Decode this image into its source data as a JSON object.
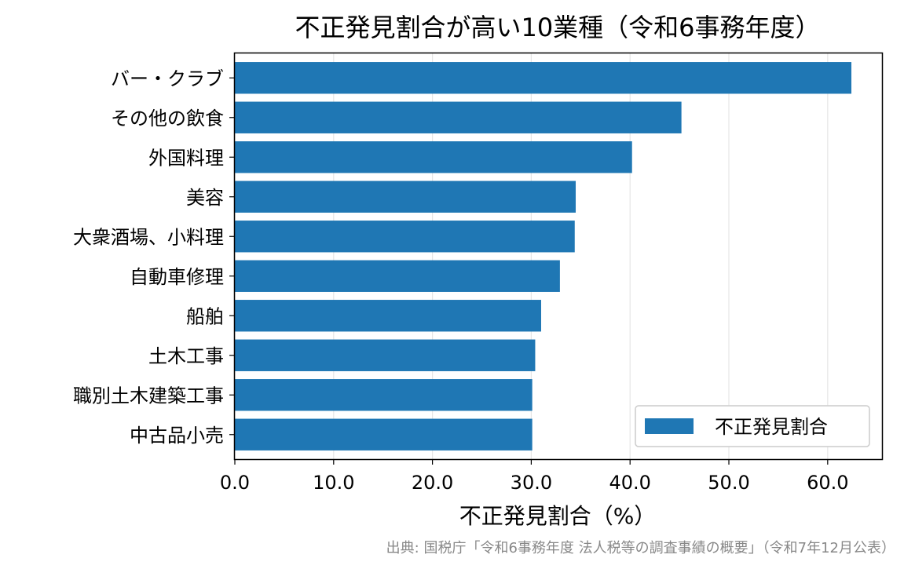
{
  "chart_data": {
    "type": "bar",
    "orientation": "horizontal",
    "title": "不正発見割合が高い10業種（令和6事務年度）",
    "xlabel": "不正発見割合（%）",
    "ylabel": "",
    "categories": [
      "バー・クラブ",
      "その他の飲食",
      "外国料理",
      "美容",
      "大衆酒場、小料理",
      "自動車修理",
      "船舶",
      "土木工事",
      "職別土木建築工事",
      "中古品小売"
    ],
    "series": [
      {
        "name": "不正発見割合",
        "values": [
          62.4,
          45.2,
          40.2,
          34.5,
          34.4,
          32.9,
          31.0,
          30.4,
          30.1,
          30.1
        ]
      }
    ],
    "xlim": [
      0,
      65.5
    ],
    "xticks": [
      "0.0",
      "10.0",
      "20.0",
      "30.0",
      "40.0",
      "50.0",
      "60.0"
    ],
    "xtick_values": [
      0,
      10,
      20,
      30,
      40,
      50,
      60
    ],
    "grid": "x",
    "legend_position": "lower-right",
    "bar_color": "#1f77b4",
    "source_note": "出典: 国税庁「令和6事務年度 法人税等の調査事績の概要」（令和7年12月公表）"
  }
}
